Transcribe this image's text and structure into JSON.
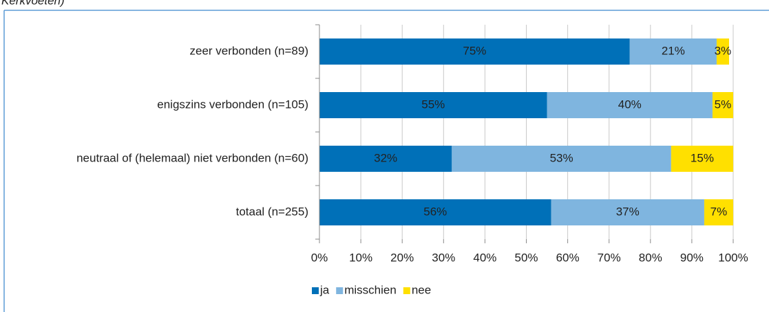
{
  "chart_data": {
    "type": "stacked_bar_horizontal",
    "title": "Kerkvoeten)",
    "categories": [
      "zeer verbonden (n=89)",
      "enigszins verbonden (n=105)",
      "neutraal of (helemaal) niet verbonden (n=60)",
      "totaal (n=255)"
    ],
    "series": [
      {
        "name": "ja",
        "color": "#0070b8",
        "values": [
          75,
          55,
          32,
          56
        ],
        "value_labels": [
          "75%",
          "55%",
          "32%",
          "56%"
        ]
      },
      {
        "name": "misschien",
        "color": "#7fb5df",
        "values": [
          21,
          40,
          53,
          37
        ],
        "value_labels": [
          "21%",
          "40%",
          "53%",
          "37%"
        ]
      },
      {
        "name": "nee",
        "color": "#ffe000",
        "values": [
          3,
          5,
          15,
          7
        ],
        "value_labels": [
          "3%",
          "5%",
          "15%",
          "7%"
        ]
      }
    ],
    "xlim": [
      0,
      100
    ],
    "xticks": [
      {
        "value": 0,
        "label": "0%"
      },
      {
        "value": 10,
        "label": "10%"
      },
      {
        "value": 20,
        "label": "20%"
      },
      {
        "value": 30,
        "label": "30%"
      },
      {
        "value": 40,
        "label": "40%"
      },
      {
        "value": 50,
        "label": "50%"
      },
      {
        "value": 60,
        "label": "60%"
      },
      {
        "value": 70,
        "label": "70%"
      },
      {
        "value": 80,
        "label": "80%"
      },
      {
        "value": 90,
        "label": "90%"
      },
      {
        "value": 100,
        "label": "100%"
      }
    ],
    "grid": true,
    "legend": "bottom"
  }
}
